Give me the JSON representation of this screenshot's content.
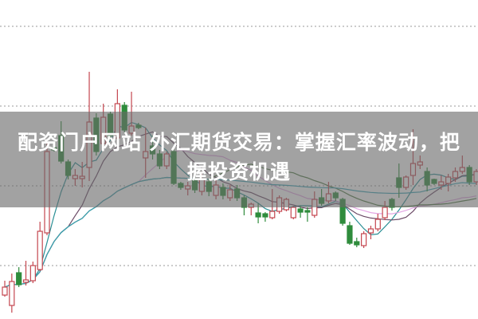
{
  "title": {
    "line1": "配资门户网站 外汇期货交易：掌握汇率波动，把",
    "line2": "握投资机遇"
  },
  "chart_data": {
    "type": "candlestick",
    "title": "配资门户网站 外汇期货交易：掌握汇率波动，把握投资机遇",
    "xlabel": "",
    "ylabel": "",
    "ylim": [
      0,
      100
    ],
    "grid": true,
    "grid_style": "dotted horizontal",
    "grid_levels": [
      91.75,
      66.75,
      41.75,
      16.75
    ],
    "colors": {
      "up": "#c4464f",
      "down": "#2f8c3c",
      "banner": "#696969"
    },
    "moving_averages": [
      {
        "period": 5,
        "color": "#2b8f95"
      },
      {
        "period": 10,
        "color": "#6b4a66"
      },
      {
        "period": 20,
        "color": "#e3a6e3"
      },
      {
        "period": 30,
        "color": "#4f7a45"
      },
      {
        "period": 60,
        "color": "#39a3b5"
      }
    ],
    "candles": [
      [
        7.5,
        12,
        7,
        10
      ],
      [
        4.25,
        14.25,
        2,
        11.75
      ],
      [
        14.5,
        16.25,
        10,
        10.75
      ],
      [
        11.5,
        18.25,
        10.5,
        12.25
      ],
      [
        12,
        18,
        11.25,
        16.75
      ],
      [
        15.5,
        30.5,
        15,
        27.5
      ],
      [
        27,
        55,
        26.25,
        52.5
      ],
      [
        53.75,
        54,
        52.5,
        53
      ],
      [
        57.5,
        62,
        48.75,
        49.5
      ],
      [
        49.25,
        50,
        43.75,
        45
      ],
      [
        44,
        47,
        41.75,
        45
      ],
      [
        44,
        49.25,
        41.25,
        44.75
      ],
      [
        47.5,
        77.5,
        43.25,
        61.75
      ],
      [
        63,
        64.5,
        51.25,
        52.5
      ],
      [
        55,
        67.5,
        53.75,
        63.25
      ],
      [
        64.25,
        65,
        56.25,
        57.5
      ],
      [
        56.75,
        72,
        55.5,
        67.5
      ],
      [
        67,
        68,
        58.5,
        59.25
      ],
      [
        58.25,
        71.25,
        57.5,
        60.5
      ],
      [
        60.75,
        61.5,
        59.5,
        60
      ],
      [
        50.5,
        60,
        44.25,
        52.5
      ],
      [
        54.25,
        57.5,
        50,
        51.75
      ],
      [
        51.75,
        53,
        47,
        48
      ],
      [
        48,
        52.5,
        47,
        51.75
      ],
      [
        52.5,
        53.75,
        42,
        42.5
      ],
      [
        42.5,
        43,
        40.5,
        41.25
      ],
      [
        40.75,
        43,
        38.75,
        41.75
      ],
      [
        43.75,
        45,
        39.5,
        40.5
      ],
      [
        40,
        46.25,
        38.75,
        43.75
      ],
      [
        43,
        44,
        38.5,
        40
      ],
      [
        38.75,
        43.5,
        37.5,
        42
      ],
      [
        41.25,
        42.5,
        37.5,
        38.75
      ],
      [
        38,
        42,
        37,
        40.5
      ],
      [
        40.75,
        42,
        37,
        38
      ],
      [
        38,
        38.75,
        32.5,
        35
      ],
      [
        35,
        36.5,
        32.5,
        36
      ],
      [
        33.25,
        36.25,
        30,
        32
      ],
      [
        33,
        33.5,
        30.5,
        32
      ],
      [
        31.75,
        40.75,
        31.25,
        33.75
      ],
      [
        33.75,
        38.75,
        33,
        38
      ],
      [
        34.25,
        38,
        33.75,
        37.5
      ],
      [
        31.75,
        35.5,
        31.25,
        35
      ],
      [
        34.5,
        35.5,
        31.75,
        33.5
      ],
      [
        34,
        35,
        30.5,
        33.5
      ],
      [
        32.5,
        40,
        31.75,
        37.5
      ],
      [
        38,
        40.75,
        35.5,
        36.25
      ],
      [
        37,
        43,
        36.25,
        39.25
      ],
      [
        39.5,
        40,
        37,
        38
      ],
      [
        37.5,
        38,
        29.25,
        30
      ],
      [
        29.25,
        30.5,
        23.25,
        23.75
      ],
      [
        24.25,
        25.5,
        22.5,
        23.25
      ],
      [
        23,
        27.5,
        22.25,
        26.75
      ],
      [
        27,
        29.25,
        25,
        28.25
      ],
      [
        28.25,
        33,
        27.5,
        31.25
      ],
      [
        31.75,
        37,
        31,
        35
      ],
      [
        37.5,
        38,
        34,
        35
      ],
      [
        44.25,
        48.75,
        38,
        41.25
      ],
      [
        41.25,
        45,
        40.5,
        44.5
      ],
      [
        45,
        59.5,
        42,
        48.75
      ],
      [
        48.25,
        51.25,
        47,
        49.25
      ],
      [
        46.25,
        47.5,
        40,
        42
      ],
      [
        43.75,
        44,
        42,
        42.5
      ],
      [
        42,
        45,
        40.5,
        43
      ],
      [
        42.5,
        45.5,
        40,
        44.5
      ],
      [
        44.25,
        47.5,
        43,
        46.25
      ],
      [
        46.25,
        51.25,
        45.5,
        47.5
      ],
      [
        47.5,
        48.25,
        42,
        43
      ],
      [
        43,
        47,
        42,
        46.25
      ]
    ],
    "candle_fields": [
      "open",
      "high",
      "low",
      "close"
    ]
  }
}
